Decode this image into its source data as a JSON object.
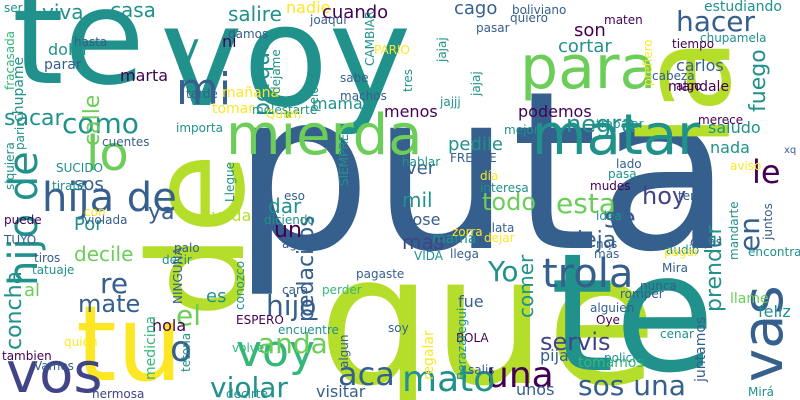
{
  "palette": {
    "dark_purple": "#440154",
    "blue_purple": "#414487",
    "slate_blue": "#355f8d",
    "teal": "#21918c",
    "green": "#35b779",
    "light_green": "#6ccd59",
    "yellow_green": "#b5de2b",
    "yellow": "#fde725"
  },
  "words": [
    {
      "text": "puta",
      "color": "slate_blue",
      "orientation": "horizontal"
    },
    {
      "text": "que",
      "color": "yellow_green",
      "orientation": "horizontal"
    },
    {
      "text": "te",
      "color": "teal",
      "orientation": "horizontal"
    },
    {
      "text": "voy",
      "color": "teal",
      "orientation": "horizontal"
    },
    {
      "text": "te",
      "color": "teal",
      "orientation": "horizontal"
    },
    {
      "text": "la",
      "color": "yellow_green",
      "orientation": "vertical"
    },
    {
      "text": "de",
      "color": "yellow_green",
      "orientation": "vertical"
    },
    {
      "text": "tu",
      "color": "yellow",
      "orientation": "horizontal"
    },
    {
      "text": "vos",
      "color": "blue_purple",
      "orientation": "horizontal"
    },
    {
      "text": "mierda",
      "color": "light_green",
      "orientation": "horizontal"
    },
    {
      "text": "matar",
      "color": "teal",
      "orientation": "horizontal"
    },
    {
      "text": "para",
      "color": "light_green",
      "orientation": "horizontal"
    },
    {
      "text": "mi",
      "color": "slate_blue",
      "orientation": "horizontal"
    },
    {
      "text": "lo",
      "color": "light_green",
      "orientation": "horizontal"
    },
    {
      "text": "hijo de",
      "color": "teal",
      "orientation": "vertical"
    },
    {
      "text": "hija de",
      "color": "slate_blue",
      "orientation": "horizontal"
    },
    {
      "text": "vas",
      "color": "slate_blue",
      "orientation": "vertical"
    },
    {
      "text": "voy",
      "color": "green",
      "orientation": "horizontal"
    },
    {
      "text": "y",
      "color": "teal",
      "orientation": "horizontal"
    },
    {
      "text": "trola",
      "color": "slate_blue",
      "orientation": "horizontal"
    },
    {
      "text": "una",
      "color": "dark_purple",
      "orientation": "horizontal"
    },
    {
      "text": "mato",
      "color": "teal",
      "orientation": "horizontal"
    },
    {
      "text": "aca",
      "color": "slate_blue",
      "orientation": "horizontal"
    },
    {
      "text": "anda",
      "color": "light_green",
      "orientation": "horizontal"
    },
    {
      "text": "hijo",
      "color": "slate_blue",
      "orientation": "horizontal"
    },
    {
      "text": "re",
      "color": "slate_blue",
      "orientation": "horizontal"
    },
    {
      "text": "mate",
      "color": "slate_blue",
      "orientation": "horizontal"
    },
    {
      "text": "el",
      "color": "light_green",
      "orientation": "horizontal"
    },
    {
      "text": "o",
      "color": "slate_blue",
      "orientation": "horizontal"
    },
    {
      "text": "violar",
      "color": "teal",
      "orientation": "horizontal"
    },
    {
      "text": "sos una",
      "color": "slate_blue",
      "orientation": "horizontal"
    },
    {
      "text": "servis",
      "color": "blue_purple",
      "orientation": "horizontal"
    },
    {
      "text": "negra",
      "color": "teal",
      "orientation": "horizontal"
    },
    {
      "text": "hacer",
      "color": "slate_blue",
      "orientation": "horizontal"
    },
    {
      "text": "esta",
      "color": "light_green",
      "orientation": "horizontal"
    },
    {
      "text": "se",
      "color": "slate_blue",
      "orientation": "horizontal"
    },
    {
      "text": "le",
      "color": "dark_purple",
      "orientation": "horizontal"
    },
    {
      "text": "en",
      "color": "slate_blue",
      "orientation": "vertical"
    },
    {
      "text": "Yo",
      "color": "teal",
      "orientation": "horizontal"
    },
    {
      "text": "hoy",
      "color": "blue_purple",
      "orientation": "horizontal"
    },
    {
      "text": "como",
      "color": "teal",
      "orientation": "horizontal"
    },
    {
      "text": "pedacitos",
      "color": "slate_blue",
      "orientation": "vertical"
    },
    {
      "text": "sacar",
      "color": "teal",
      "orientation": "horizontal"
    },
    {
      "text": "calle",
      "color": "light_green",
      "orientation": "vertical"
    },
    {
      "text": "concha",
      "color": "teal",
      "orientation": "vertical"
    },
    {
      "text": "porque",
      "color": "teal",
      "orientation": "vertical"
    },
    {
      "text": "fuego",
      "color": "teal",
      "orientation": "vertical"
    },
    {
      "text": "mil",
      "color": "teal",
      "orientation": "horizontal"
    },
    {
      "text": "todo",
      "color": "light_green",
      "orientation": "horizontal"
    },
    {
      "text": "un",
      "color": "dark_purple",
      "orientation": "horizontal"
    },
    {
      "text": "decile",
      "color": "light_green",
      "orientation": "horizontal"
    },
    {
      "text": "mas",
      "color": "blue_purple",
      "orientation": "horizontal"
    },
    {
      "text": "vieja",
      "color": "slate_blue",
      "orientation": "horizontal"
    },
    {
      "text": "prender",
      "color": "teal",
      "orientation": "vertical"
    },
    {
      "text": "comer",
      "color": "teal",
      "orientation": "vertical"
    },
    {
      "text": "feliz",
      "color": "teal",
      "orientation": "horizontal"
    },
    {
      "text": "sos",
      "color": "slate_blue",
      "orientation": "horizontal"
    },
    {
      "text": "ya",
      "color": "slate_blue",
      "orientation": "horizontal"
    },
    {
      "text": "ver",
      "color": "slate_blue",
      "orientation": "horizontal"
    },
    {
      "text": "dar",
      "color": "teal",
      "orientation": "horizontal"
    },
    {
      "text": "Por",
      "color": "teal",
      "orientation": "horizontal"
    },
    {
      "text": "al",
      "color": "light_green",
      "orientation": "horizontal"
    },
    {
      "text": "es",
      "color": "teal",
      "orientation": "horizontal"
    },
    {
      "text": "hola",
      "color": "dark_purple",
      "orientation": "horizontal"
    },
    {
      "text": "casa",
      "color": "teal",
      "orientation": "horizontal"
    },
    {
      "text": "viva",
      "color": "teal",
      "orientation": "horizontal"
    },
    {
      "text": "salire",
      "color": "teal",
      "orientation": "horizontal"
    },
    {
      "text": "nadie",
      "color": "yellow",
      "orientation": "horizontal"
    },
    {
      "text": "cuando",
      "color": "dark_purple",
      "orientation": "horizontal"
    },
    {
      "text": "cago",
      "color": "slate_blue",
      "orientation": "horizontal"
    },
    {
      "text": "son",
      "color": "dark_purple",
      "orientation": "horizontal"
    },
    {
      "text": "cortar",
      "color": "teal",
      "orientation": "horizontal"
    },
    {
      "text": "carlos",
      "color": "slate_blue",
      "orientation": "horizontal"
    },
    {
      "text": "mama",
      "color": "teal",
      "orientation": "horizontal"
    },
    {
      "text": "menos",
      "color": "dark_purple",
      "orientation": "horizontal"
    },
    {
      "text": "podemos",
      "color": "dark_purple",
      "orientation": "horizontal"
    },
    {
      "text": "pedile",
      "color": "teal",
      "orientation": "horizontal"
    },
    {
      "text": "nada",
      "color": "teal",
      "orientation": "horizontal"
    },
    {
      "text": "saludo",
      "color": "teal",
      "orientation": "horizontal"
    },
    {
      "text": "mandale",
      "color": "dark_purple",
      "orientation": "horizontal"
    },
    {
      "text": "estudiando",
      "color": "teal",
      "orientation": "horizontal"
    },
    {
      "text": "marta",
      "color": "dark_purple",
      "orientation": "horizontal"
    },
    {
      "text": "ni",
      "color": "dark_purple",
      "orientation": "horizontal"
    },
    {
      "text": "tomar",
      "color": "yellow",
      "orientation": "horizontal"
    },
    {
      "text": "mañana",
      "color": "yellow",
      "orientation": "horizontal"
    },
    {
      "text": "chupame",
      "color": "teal",
      "orientation": "vertical"
    },
    {
      "text": "dolar",
      "color": "teal",
      "orientation": "horizontal"
    },
    {
      "text": "parar",
      "color": "slate_blue",
      "orientation": "horizontal"
    },
    {
      "text": "hasta",
      "color": "slate_blue",
      "orientation": "horizontal"
    },
    {
      "text": "ayuda",
      "color": "yellow_green",
      "orientation": "horizontal"
    },
    {
      "text": "jose",
      "color": "slate_blue",
      "orientation": "horizontal"
    },
    {
      "text": "mamá",
      "color": "teal",
      "orientation": "horizontal"
    },
    {
      "text": "llega",
      "color": "slate_blue",
      "orientation": "horizontal"
    },
    {
      "text": "fue",
      "color": "slate_blue",
      "orientation": "horizontal"
    },
    {
      "text": "unos",
      "color": "slate_blue",
      "orientation": "horizontal"
    },
    {
      "text": "visitar",
      "color": "slate_blue",
      "orientation": "horizontal"
    },
    {
      "text": "medicina",
      "color": "green",
      "orientation": "vertical"
    },
    {
      "text": "pija",
      "color": "slate_blue",
      "orientation": "horizontal"
    },
    {
      "text": "tomamos",
      "color": "green",
      "orientation": "horizontal"
    },
    {
      "text": "juntamos",
      "color": "slate_blue",
      "orientation": "vertical"
    },
    {
      "text": "regalar",
      "color": "yellow",
      "orientation": "vertical"
    },
    {
      "text": "policia",
      "color": "teal",
      "orientation": "horizontal"
    },
    {
      "text": "pagaste",
      "color": "slate_blue",
      "orientation": "horizontal"
    },
    {
      "text": "encuentre",
      "color": "teal",
      "orientation": "horizontal"
    },
    {
      "text": "volver",
      "color": "green",
      "orientation": "horizontal"
    },
    {
      "text": "decirte",
      "color": "teal",
      "orientation": "horizontal"
    },
    {
      "text": "hermosa",
      "color": "blue_purple",
      "orientation": "horizontal"
    },
    {
      "text": "Vamos",
      "color": "slate_blue",
      "orientation": "horizontal"
    },
    {
      "text": "tambien",
      "color": "dark_purple",
      "orientation": "horizontal"
    },
    {
      "text": "tirate",
      "color": "teal",
      "orientation": "horizontal"
    },
    {
      "text": "tiros",
      "color": "slate_blue",
      "orientation": "horizontal"
    },
    {
      "text": "tatuaje",
      "color": "teal",
      "orientation": "horizontal"
    },
    {
      "text": "decir",
      "color": "teal",
      "orientation": "horizontal"
    },
    {
      "text": "palo",
      "color": "slate_blue",
      "orientation": "horizontal"
    },
    {
      "text": "violada",
      "color": "slate_blue",
      "orientation": "horizontal"
    },
    {
      "text": "diciendo",
      "color": "teal",
      "orientation": "horizontal"
    },
    {
      "text": "agarre",
      "color": "slate_blue",
      "orientation": "horizontal"
    },
    {
      "text": "cara",
      "color": "slate_blue",
      "orientation": "horizontal"
    },
    {
      "text": "ESPERO",
      "color": "dark_purple",
      "orientation": "horizontal"
    },
    {
      "text": "perder",
      "color": "green",
      "orientation": "horizontal"
    },
    {
      "text": "BOLA",
      "color": "dark_purple",
      "orientation": "horizontal"
    },
    {
      "text": "salis",
      "color": "slate_blue",
      "orientation": "horizontal"
    },
    {
      "text": "cenar",
      "color": "teal",
      "orientation": "horizontal"
    },
    {
      "text": "alguien",
      "color": "slate_blue",
      "orientation": "horizontal"
    },
    {
      "text": "llame",
      "color": "light_green",
      "orientation": "horizontal"
    },
    {
      "text": "nunca",
      "color": "slate_blue",
      "orientation": "horizontal"
    },
    {
      "text": "romper",
      "color": "slate_blue",
      "orientation": "horizontal"
    },
    {
      "text": "audio",
      "color": "teal",
      "orientation": "horizontal"
    },
    {
      "text": "pagar",
      "color": "yellow",
      "orientation": "horizontal"
    },
    {
      "text": "Mira",
      "color": "slate_blue",
      "orientation": "horizontal"
    },
    {
      "text": "dejas",
      "color": "slate_blue",
      "orientation": "horizontal"
    },
    {
      "text": "encontrar",
      "color": "teal",
      "orientation": "horizontal"
    },
    {
      "text": "juntos",
      "color": "slate_blue",
      "orientation": "vertical"
    },
    {
      "text": "mandarte",
      "color": "teal",
      "orientation": "vertical"
    },
    {
      "text": "idea",
      "color": "teal",
      "orientation": "horizontal"
    },
    {
      "text": "dejar",
      "color": "yellow",
      "orientation": "horizontal"
    },
    {
      "text": "plata",
      "color": "slate_blue",
      "orientation": "horizontal"
    },
    {
      "text": "zorra",
      "color": "yellow",
      "orientation": "horizontal"
    },
    {
      "text": "VIDA",
      "color": "teal",
      "orientation": "horizontal"
    },
    {
      "text": "más",
      "color": "slate_blue",
      "orientation": "horizontal"
    },
    {
      "text": "nos",
      "color": "slate_blue",
      "orientation": "horizontal"
    },
    {
      "text": "día",
      "color": "yellow",
      "orientation": "horizontal"
    },
    {
      "text": "interesa",
      "color": "teal",
      "orientation": "horizontal"
    },
    {
      "text": "FRENTE",
      "color": "slate_blue",
      "orientation": "horizontal"
    },
    {
      "text": "hablar",
      "color": "teal",
      "orientation": "horizontal"
    },
    {
      "text": "mudes",
      "color": "dark_purple",
      "orientation": "horizontal"
    },
    {
      "text": "pasa",
      "color": "teal",
      "orientation": "horizontal"
    },
    {
      "text": "lado",
      "color": "slate_blue",
      "orientation": "horizontal"
    },
    {
      "text": "tengo",
      "color": "slate_blue",
      "orientation": "horizontal"
    },
    {
      "text": "aviso",
      "color": "yellow",
      "orientation": "horizontal"
    },
    {
      "text": "merece",
      "color": "dark_purple",
      "orientation": "horizontal"
    },
    {
      "text": "trabajar",
      "color": "teal",
      "orientation": "horizontal"
    },
    {
      "text": "mejor",
      "color": "teal",
      "orientation": "horizontal"
    },
    {
      "text": "jajjj",
      "color": "teal",
      "orientation": "horizontal"
    },
    {
      "text": "jajaj",
      "color": "teal",
      "orientation": "vertical"
    },
    {
      "text": "jajaj",
      "color": "teal",
      "orientation": "vertical"
    },
    {
      "text": "tres",
      "color": "teal",
      "orientation": "vertical"
    },
    {
      "text": "sabe",
      "color": "slate_blue",
      "orientation": "horizontal"
    },
    {
      "text": "machos",
      "color": "slate_blue",
      "orientation": "horizontal"
    },
    {
      "text": "pelotuda",
      "color": "teal",
      "orientation": "vertical"
    },
    {
      "text": "molestarte",
      "color": "teal",
      "orientation": "horizontal"
    },
    {
      "text": "importa",
      "color": "teal",
      "orientation": "horizontal"
    },
    {
      "text": "cuentes",
      "color": "slate_blue",
      "orientation": "horizontal"
    },
    {
      "text": "Quien",
      "color": "yellow",
      "orientation": "horizontal"
    },
    {
      "text": "dejame",
      "color": "teal",
      "orientation": "vertical"
    },
    {
      "text": "tarde",
      "color": "slate_blue",
      "orientation": "horizontal"
    },
    {
      "text": "damos",
      "color": "slate_blue",
      "orientation": "horizontal"
    },
    {
      "text": "joaqui",
      "color": "slate_blue",
      "orientation": "horizontal"
    },
    {
      "text": "CAMBIAR",
      "color": "teal",
      "orientation": "vertical"
    },
    {
      "text": "PARIO",
      "color": "yellow",
      "orientation": "horizontal"
    },
    {
      "text": "boliviano",
      "color": "slate_blue",
      "orientation": "horizontal"
    },
    {
      "text": "quiero",
      "color": "slate_blue",
      "orientation": "horizontal"
    },
    {
      "text": "pasar",
      "color": "slate_blue",
      "orientation": "horizontal"
    },
    {
      "text": "maten",
      "color": "dark_purple",
      "orientation": "horizontal"
    },
    {
      "text": "chupamela",
      "color": "teal",
      "orientation": "horizontal"
    },
    {
      "text": "tiempo",
      "color": "dark_purple",
      "orientation": "horizontal"
    },
    {
      "text": "prefiero",
      "color": "yellow",
      "orientation": "vertical"
    },
    {
      "text": "cabeza",
      "color": "slate_blue",
      "orientation": "horizontal"
    },
    {
      "text": "algo",
      "color": "dark_purple",
      "orientation": "horizontal"
    },
    {
      "text": "SIEMPRE",
      "color": "teal",
      "orientation": "vertical"
    },
    {
      "text": "Llegue",
      "color": "teal",
      "orientation": "vertical"
    },
    {
      "text": "NINGUNA",
      "color": "slate_blue",
      "orientation": "vertical"
    },
    {
      "text": "conozco",
      "color": "teal",
      "orientation": "vertical"
    },
    {
      "text": "algun",
      "color": "slate_blue",
      "orientation": "vertical"
    },
    {
      "text": "soy",
      "color": "slate_blue",
      "orientation": "horizontal"
    },
    {
      "text": "eso",
      "color": "slate_blue",
      "orientation": "horizontal"
    },
    {
      "text": "con",
      "color": "yellow",
      "orientation": "horizontal"
    },
    {
      "text": "puede",
      "color": "dark_purple",
      "orientation": "horizontal"
    },
    {
      "text": "TUYO",
      "color": "slate_blue",
      "orientation": "horizontal"
    },
    {
      "text": "SUCIDO",
      "color": "teal",
      "orientation": "horizontal"
    },
    {
      "text": "siquiera",
      "color": "teal",
      "orientation": "vertical"
    },
    {
      "text": "parir",
      "color": "teal",
      "orientation": "vertical"
    },
    {
      "text": "fracasada",
      "color": "green",
      "orientation": "vertical"
    },
    {
      "text": "ser",
      "color": "teal",
      "orientation": "horizontal"
    },
    {
      "text": "quién",
      "color": "yellow",
      "orientation": "horizontal"
    },
    {
      "text": "tetona",
      "color": "teal",
      "orientation": "vertical"
    },
    {
      "text": "Berazategui",
      "color": "teal",
      "orientation": "vertical"
    },
    {
      "text": "Oye",
      "color": "dark_purple",
      "orientation": "horizontal"
    },
    {
      "text": "Mirá",
      "color": "teal",
      "orientation": "horizontal"
    },
    {
      "text": "xq",
      "color": "slate_blue",
      "orientation": "horizontal"
    }
  ]
}
